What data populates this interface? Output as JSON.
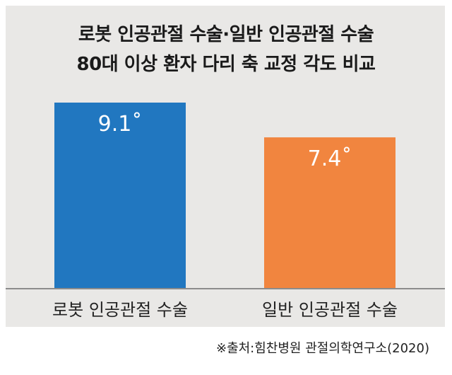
{
  "chart_data": {
    "type": "bar",
    "title": [
      "로봇 인공관절 수술·일반 인공관절 수술",
      "80대 이상 환자 다리 축 교정 각도 비교"
    ],
    "categories": [
      "로봇 인공관절 수술",
      "일반 인공관절 수술"
    ],
    "values": [
      9.1,
      7.4
    ],
    "value_labels": [
      "9.1˚",
      "7.4˚"
    ],
    "colors": [
      "#2177c0",
      "#f1853f"
    ],
    "ylim": [
      0,
      9.1
    ],
    "grid": false,
    "legend": "none"
  },
  "source": "※출처:힘찬병원 관절의학연구소(2020)"
}
